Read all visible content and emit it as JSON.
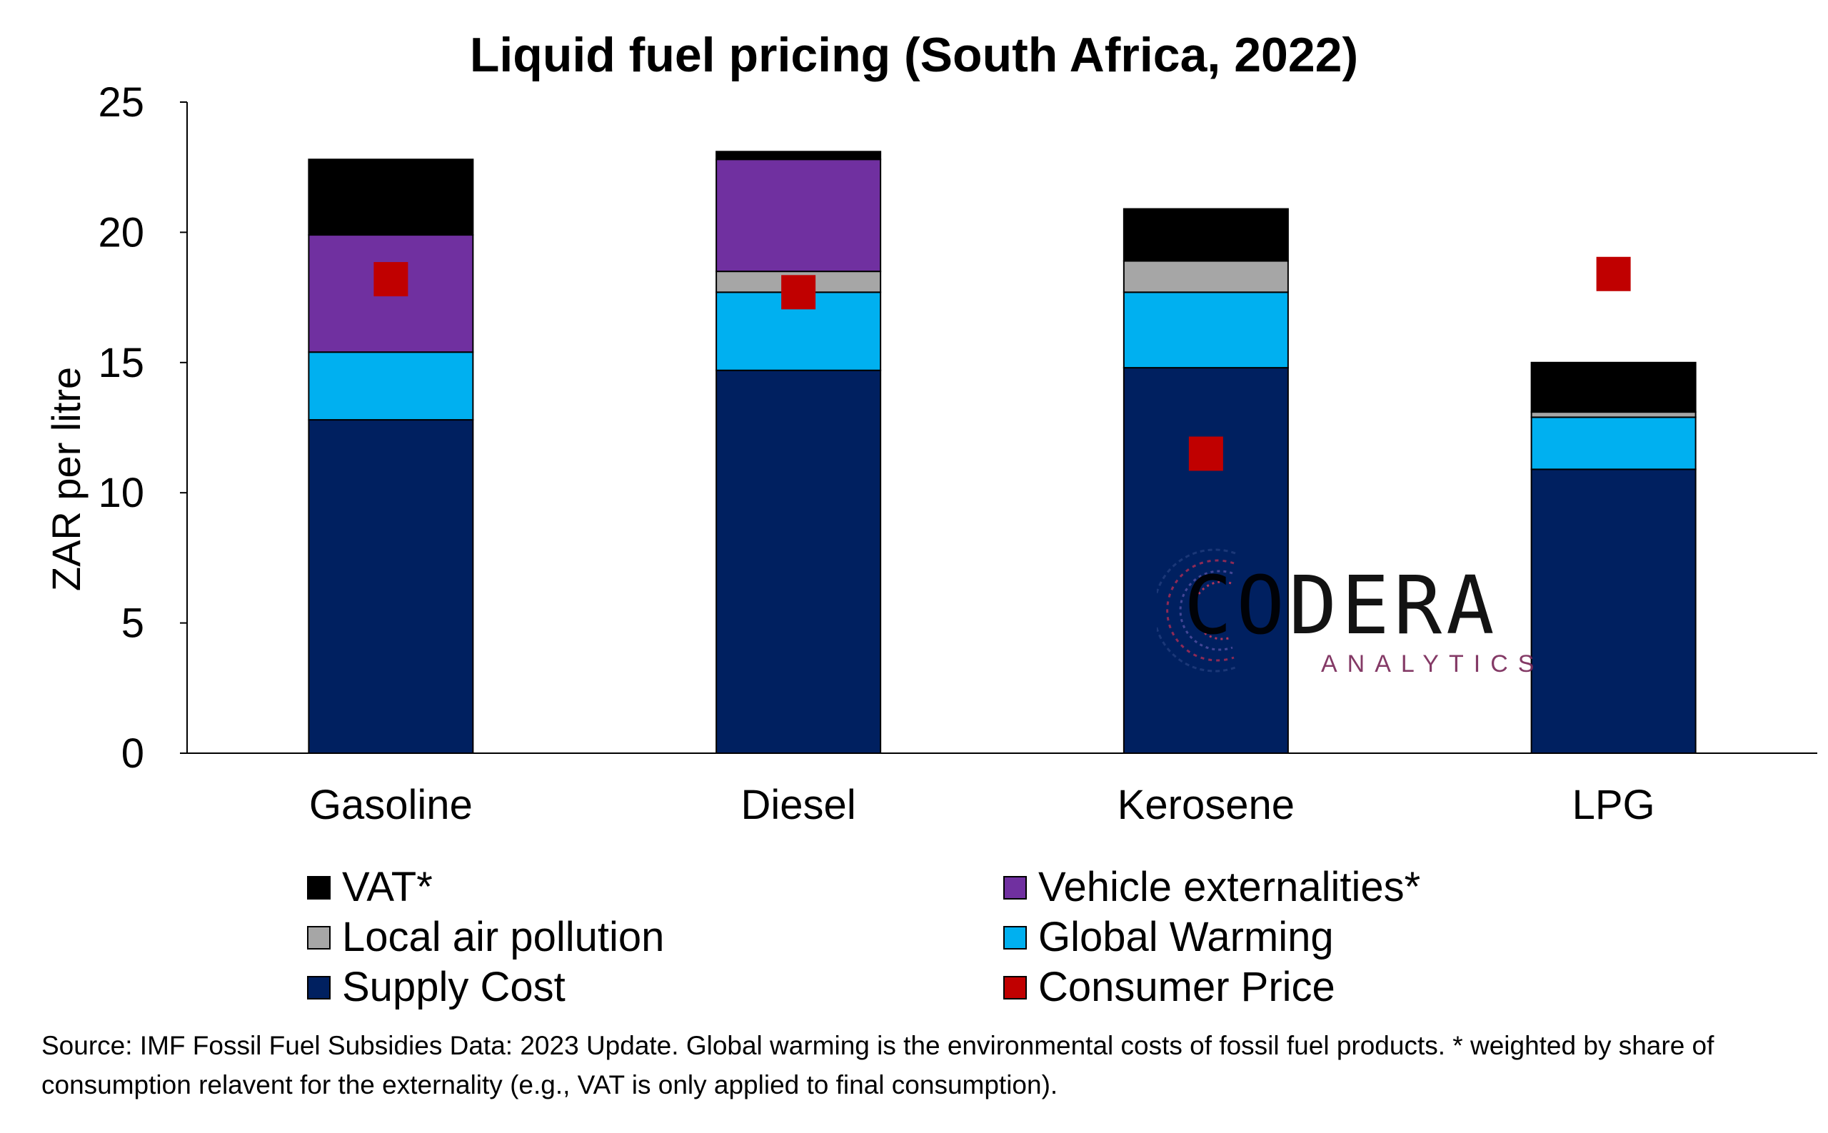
{
  "chart_data": {
    "type": "bar",
    "stacked": true,
    "title": "Liquid fuel pricing (South Africa, 2022)",
    "ylabel": "ZAR per litre",
    "xlabel": "",
    "ylim": [
      0,
      25
    ],
    "yticks": [
      0,
      5,
      10,
      15,
      20,
      25
    ],
    "grid": false,
    "categories": [
      "Gasoline",
      "Diesel",
      "Kerosene",
      "LPG"
    ],
    "series": [
      {
        "name": "Supply Cost",
        "color": "#002060",
        "values": [
          12.8,
          14.7,
          14.8,
          10.9
        ]
      },
      {
        "name": "Global Warming",
        "color": "#00B0F0",
        "values": [
          2.6,
          3.0,
          2.9,
          2.0
        ]
      },
      {
        "name": "Local air pollution",
        "color": "#A6A6A6",
        "values": [
          0.0,
          0.8,
          1.2,
          0.2
        ]
      },
      {
        "name": "Vehicle externalities*",
        "color": "#7030A0",
        "values": [
          4.5,
          4.3,
          0.0,
          0.0
        ]
      },
      {
        "name": "VAT*",
        "color": "#000000",
        "values": [
          2.9,
          0.3,
          2.0,
          1.9
        ]
      }
    ],
    "markers": {
      "name": "Consumer Price",
      "color": "#C00000",
      "values": [
        18.2,
        17.7,
        11.5,
        18.4
      ]
    },
    "legend_position": "bottom"
  },
  "legend": [
    {
      "label": "VAT*",
      "color": "#000000"
    },
    {
      "label": "Vehicle externalities*",
      "color": "#7030A0"
    },
    {
      "label": "Local air pollution",
      "color": "#A6A6A6"
    },
    {
      "label": "Global Warming",
      "color": "#00B0F0"
    },
    {
      "label": "Supply Cost",
      "color": "#002060"
    },
    {
      "label": "Consumer Price",
      "color": "#C00000"
    }
  ],
  "source_note": "Source: IMF Fossil Fuel Subsidies Data: 2023 Update. Global warming is the environmental costs of fossil fuel products. * weighted by share of consumption relavent for the externality (e.g., VAT is only applied to final consumption).",
  "logo": {
    "word": "CODERA",
    "sub": "ANALYTICS"
  }
}
